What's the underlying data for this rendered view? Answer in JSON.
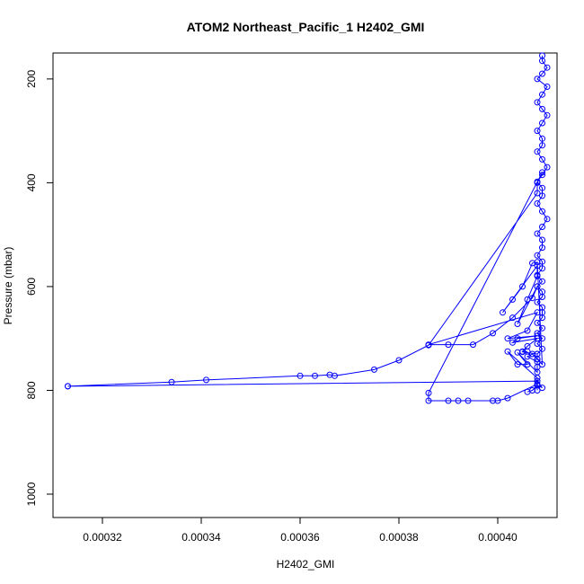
{
  "chart_data": {
    "type": "line",
    "title": "ATOM2 Northeast_Pacific_1 H2402_GMI",
    "xlabel": "H2402_GMI",
    "ylabel": "Pressure (mbar)",
    "xlim": [
      0.00031,
      0.000412
    ],
    "ylim": [
      1045,
      150
    ],
    "y_reversed": true,
    "x_ticks": [
      0.00032,
      0.00034,
      0.00036,
      0.00038,
      0.0004
    ],
    "x_tick_labels": [
      "0.00032",
      "0.00034",
      "0.00036",
      "0.00038",
      "0.00040"
    ],
    "y_ticks": [
      200,
      400,
      600,
      800,
      1000
    ],
    "y_tick_labels": [
      "200",
      "400",
      "600",
      "800",
      "1000"
    ],
    "grid": false,
    "series": [
      {
        "color": "#0000ff",
        "marker": "open-circle",
        "x": [
          0.000409,
          0.000409,
          0.00041,
          0.000409,
          0.000408,
          0.00041,
          0.000409,
          0.000408,
          0.000409,
          0.00041,
          0.000409,
          0.000408,
          0.000409,
          0.000409,
          0.000408,
          0.000409,
          0.00041,
          0.000409,
          0.000408,
          0.000409,
          0.000409,
          0.000408,
          0.000409,
          0.00041,
          0.000409,
          0.000408,
          0.000409,
          0.000409,
          0.000408,
          0.000409,
          0.000409,
          0.000408,
          0.000409,
          0.000408,
          0.000409,
          0.000409,
          0.000408,
          0.000409,
          0.000409,
          0.000409,
          0.000408,
          0.000409,
          0.000408,
          0.000409,
          0.000408,
          0.000409,
          0.000408,
          0.000408,
          0.000409,
          0.000408,
          0.000407,
          0.000405,
          0.000403,
          0.000401,
          0.000408,
          0.000408,
          0.000406,
          0.000404,
          0.000408,
          0.000407,
          0.000403,
          0.000399,
          0.000395,
          0.00039,
          0.000386,
          0.000408,
          0.000406,
          0.000402,
          0.000408,
          0.000404,
          0.000403,
          0.000408,
          0.000406,
          0.000405,
          0.000406,
          0.000405,
          0.000408,
          0.000408,
          0.000407,
          0.000406,
          0.000408,
          0.000408,
          0.000408,
          0.000404,
          0.000406,
          0.000404,
          0.000402,
          0.000408,
          0.000408,
          0.000408,
          0.000408,
          0.000402,
          0.0004,
          0.000399,
          0.000394,
          0.000392,
          0.00039,
          0.000386,
          0.000386,
          0.000409,
          0.000408,
          0.000408,
          0.000386,
          0.00038,
          0.000375,
          0.000367,
          0.000366,
          0.000363,
          0.00036,
          0.000341,
          0.000334,
          0.000313,
          0.000313,
          0.000408,
          0.000409,
          0.000408,
          0.000407,
          0.000406
        ],
        "y": [
          155,
          165,
          178,
          190,
          200,
          215,
          230,
          245,
          258,
          270,
          285,
          300,
          315,
          328,
          340,
          355,
          370,
          385,
          398,
          410,
          425,
          440,
          455,
          470,
          485,
          498,
          510,
          525,
          540,
          552,
          565,
          578,
          590,
          600,
          610,
          620,
          630,
          640,
          650,
          660,
          670,
          680,
          690,
          700,
          710,
          720,
          730,
          740,
          750,
          553,
          555,
          600,
          625,
          650,
          560,
          580,
          625,
          672,
          600,
          622,
          660,
          690,
          712,
          712,
          712,
          650,
          685,
          700,
          695,
          700,
          708,
          700,
          715,
          725,
          725,
          726,
          730,
          740,
          730,
          735,
          745,
          755,
          765,
          727,
          750,
          750,
          725,
          776,
          790,
          800,
          788,
          815,
          820,
          820,
          820,
          820,
          820,
          820,
          805,
          380,
          400,
          420,
          713,
          742,
          760,
          772,
          770,
          772,
          772,
          780,
          784,
          792,
          792,
          782,
          795,
          790,
          800,
          803
        ]
      }
    ]
  }
}
